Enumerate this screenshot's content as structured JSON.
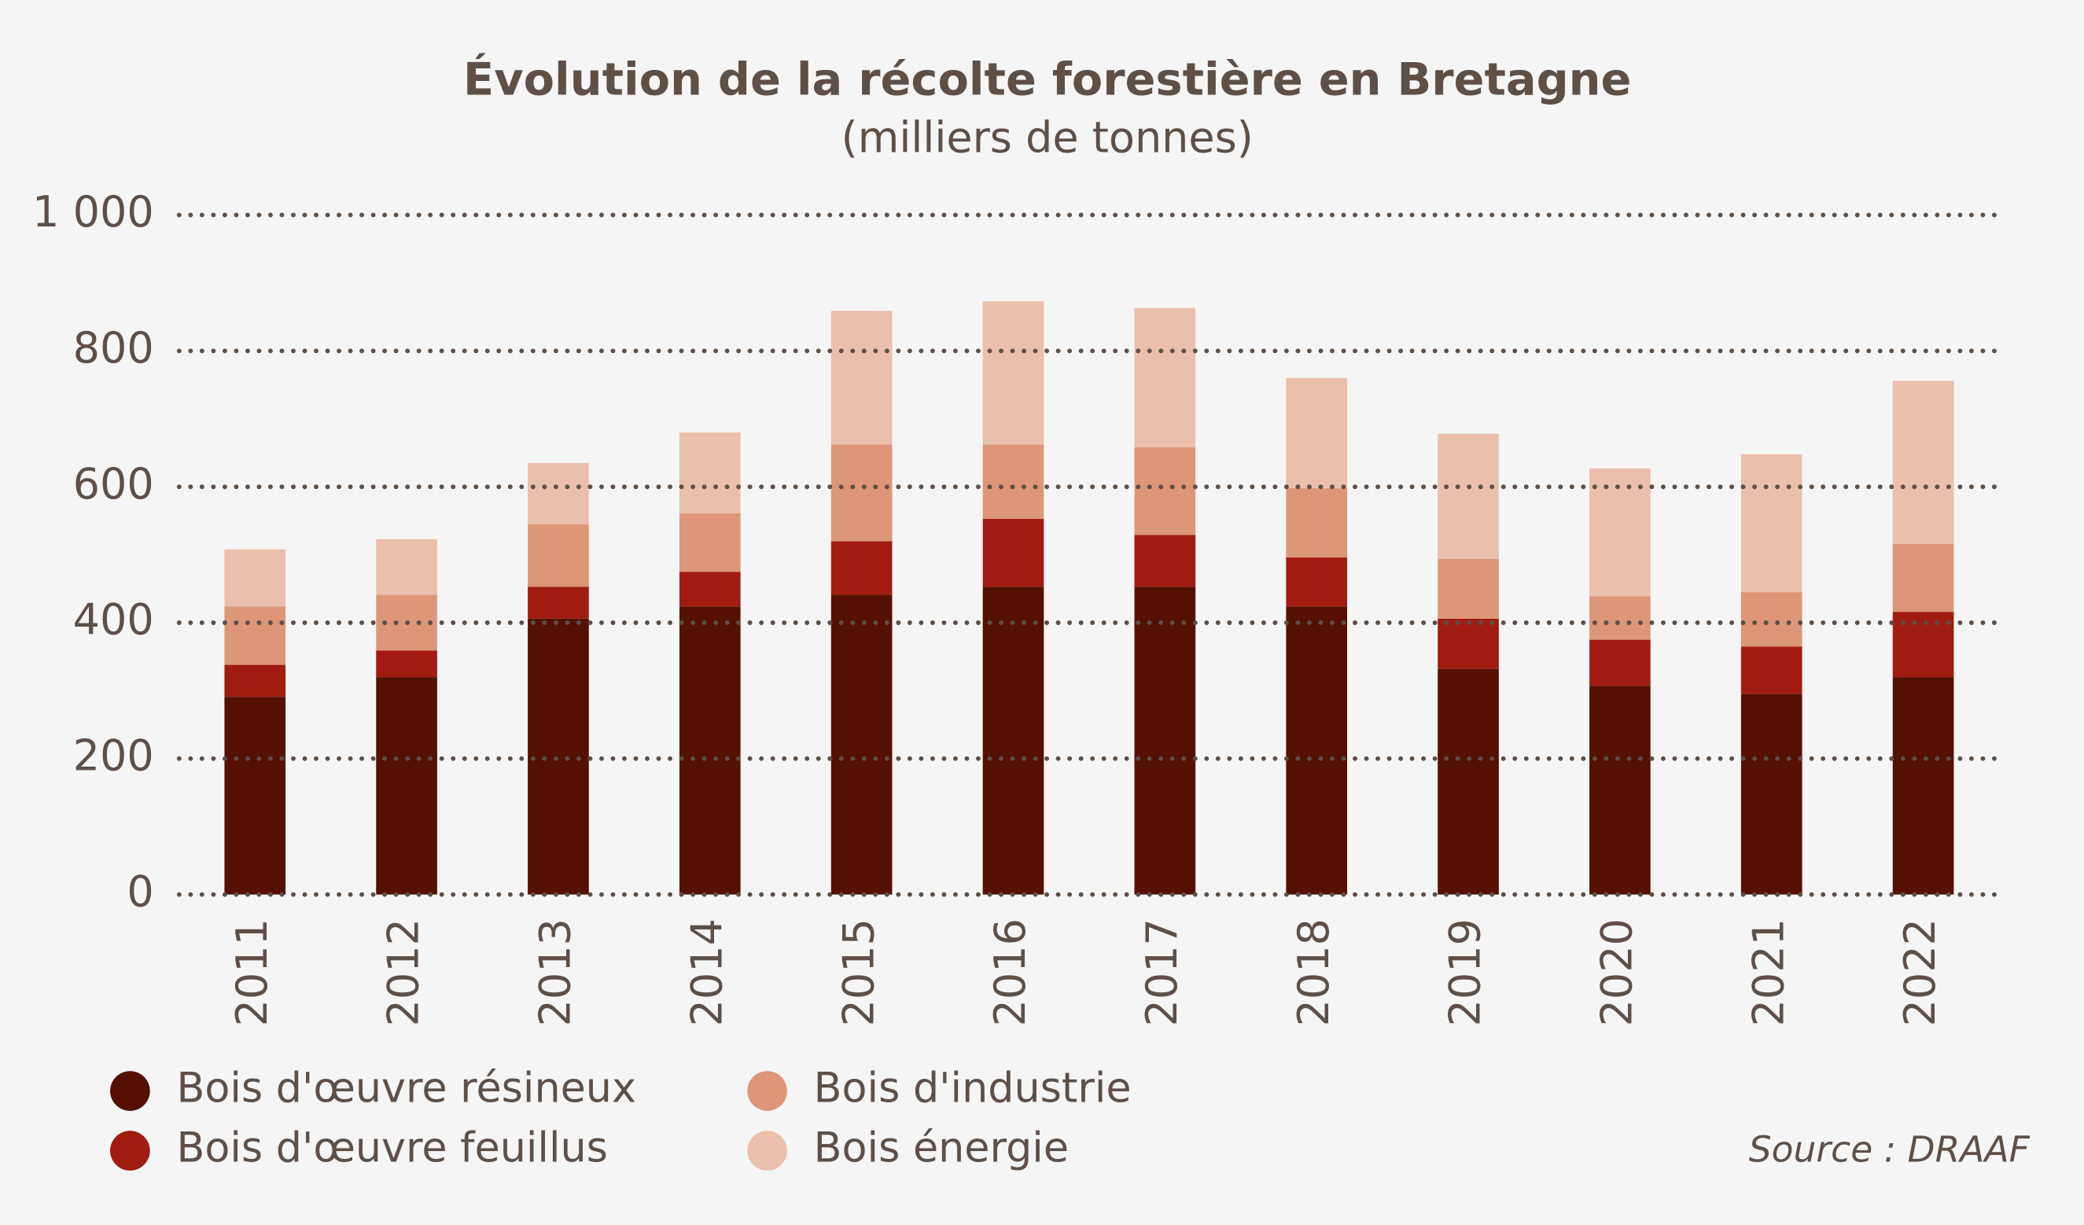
{
  "chart_data": {
    "type": "stacked-bar",
    "title": "Évolution de la récolte forestière en Bretagne",
    "subtitle": "(milliers de tonnes)",
    "source": "Source : DRAAF",
    "categories": [
      "2011",
      "2012",
      "2013",
      "2014",
      "2015",
      "2016",
      "2017",
      "2018",
      "2019",
      "2020",
      "2021",
      "2022"
    ],
    "series": [
      {
        "name": "Bois d'œuvre résineux",
        "color": "#541000",
        "values": [
          291,
          320,
          406,
          424,
          441,
          453,
          453,
          424,
          332,
          307,
          295,
          320
        ]
      },
      {
        "name": "Bois d'œuvre feuillus",
        "color": "#a01c10",
        "values": [
          47,
          39,
          47,
          51,
          79,
          100,
          76,
          72,
          74,
          68,
          70,
          96
        ]
      },
      {
        "name": "Bois d'industrie",
        "color": "#dd9677",
        "values": [
          86,
          82,
          92,
          86,
          142,
          109,
          129,
          102,
          88,
          64,
          80,
          100
        ]
      },
      {
        "name": "Bois énergie",
        "color": "#eabfab",
        "values": [
          84,
          82,
          90,
          119,
          197,
          211,
          205,
          162,
          184,
          188,
          203,
          240
        ]
      }
    ],
    "ylim": [
      0,
      1000
    ],
    "yticks": [
      0,
      200,
      400,
      600,
      800,
      {
        "value": 1000,
        "label": "1 000"
      }
    ],
    "grid": true
  }
}
